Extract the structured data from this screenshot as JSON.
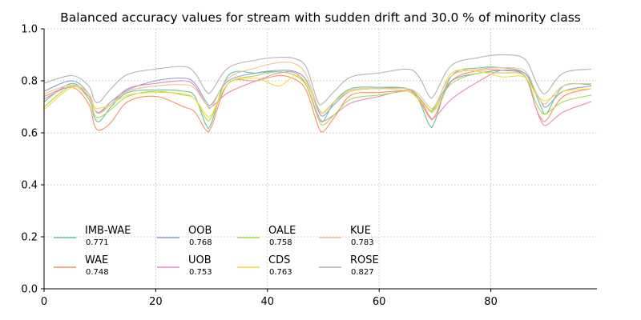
{
  "chart_data": {
    "type": "line",
    "title": "Balanced accuracy values for stream with sudden drift and 30.0 % of minority class",
    "xlabel": "",
    "ylabel": "",
    "xlim": [
      0,
      99
    ],
    "ylim": [
      0.0,
      1.0
    ],
    "xticks": [
      0,
      20,
      40,
      60,
      80
    ],
    "yticks": [
      0.0,
      0.2,
      0.4,
      0.6,
      0.8,
      1.0
    ],
    "xtick_labels": [
      "0",
      "20",
      "40",
      "60",
      "80"
    ],
    "ytick_labels": [
      "0.0",
      "0.2",
      "0.4",
      "0.6",
      "0.8",
      "1.0"
    ],
    "grid": true,
    "legend_position": "lower-left",
    "x": [
      0,
      5,
      8,
      9,
      10,
      12,
      15,
      20,
      25,
      27,
      29,
      30,
      33,
      38,
      42,
      45,
      47,
      49,
      50,
      52,
      55,
      60,
      65,
      67,
      69,
      70,
      73,
      78,
      82,
      86,
      88,
      89,
      90,
      93,
      98
    ],
    "series": [
      {
        "name": "IMB-WAE",
        "legend_value": "0.771",
        "color": "#66c2a5",
        "values": [
          0.72,
          0.79,
          0.73,
          0.66,
          0.645,
          0.7,
          0.755,
          0.765,
          0.76,
          0.74,
          0.63,
          0.64,
          0.82,
          0.83,
          0.835,
          0.82,
          0.78,
          0.67,
          0.645,
          0.72,
          0.77,
          0.775,
          0.77,
          0.73,
          0.63,
          0.645,
          0.82,
          0.85,
          0.85,
          0.83,
          0.75,
          0.7,
          0.675,
          0.78,
          0.785
        ]
      },
      {
        "name": "WAE",
        "legend_value": "0.748",
        "color": "#fc8d62",
        "values": [
          0.74,
          0.775,
          0.71,
          0.63,
          0.61,
          0.64,
          0.72,
          0.74,
          0.7,
          0.68,
          0.61,
          0.625,
          0.79,
          0.8,
          0.82,
          0.805,
          0.76,
          0.63,
          0.605,
          0.66,
          0.745,
          0.755,
          0.76,
          0.73,
          0.66,
          0.665,
          0.8,
          0.84,
          0.84,
          0.82,
          0.7,
          0.655,
          0.65,
          0.74,
          0.77
        ]
      },
      {
        "name": "OOB",
        "legend_value": "0.768",
        "color": "#8da0cb",
        "values": [
          0.76,
          0.8,
          0.75,
          0.69,
          0.68,
          0.72,
          0.765,
          0.8,
          0.81,
          0.79,
          0.72,
          0.71,
          0.8,
          0.83,
          0.84,
          0.835,
          0.8,
          0.69,
          0.665,
          0.71,
          0.76,
          0.77,
          0.77,
          0.74,
          0.69,
          0.7,
          0.8,
          0.83,
          0.84,
          0.83,
          0.76,
          0.72,
          0.7,
          0.76,
          0.78
        ]
      },
      {
        "name": "UOB",
        "legend_value": "0.753",
        "color": "#e78ac3",
        "values": [
          0.73,
          0.78,
          0.74,
          0.69,
          0.68,
          0.71,
          0.77,
          0.79,
          0.8,
          0.78,
          0.71,
          0.7,
          0.755,
          0.8,
          0.83,
          0.83,
          0.78,
          0.67,
          0.645,
          0.67,
          0.715,
          0.74,
          0.765,
          0.74,
          0.665,
          0.66,
          0.73,
          0.8,
          0.84,
          0.82,
          0.7,
          0.645,
          0.63,
          0.68,
          0.72
        ]
      },
      {
        "name": "OALE",
        "legend_value": "0.758",
        "color": "#a6d854",
        "values": [
          0.7,
          0.78,
          0.73,
          0.67,
          0.66,
          0.69,
          0.74,
          0.76,
          0.745,
          0.73,
          0.655,
          0.66,
          0.79,
          0.82,
          0.835,
          0.82,
          0.78,
          0.66,
          0.63,
          0.67,
          0.73,
          0.745,
          0.76,
          0.74,
          0.685,
          0.69,
          0.79,
          0.83,
          0.83,
          0.82,
          0.72,
          0.68,
          0.675,
          0.72,
          0.745
        ]
      },
      {
        "name": "CDS",
        "legend_value": "0.763",
        "color": "#ffd92f",
        "values": [
          0.69,
          0.775,
          0.75,
          0.7,
          0.695,
          0.71,
          0.745,
          0.755,
          0.75,
          0.73,
          0.67,
          0.67,
          0.79,
          0.81,
          0.78,
          0.82,
          0.79,
          0.7,
          0.68,
          0.72,
          0.76,
          0.77,
          0.76,
          0.73,
          0.69,
          0.695,
          0.83,
          0.835,
          0.815,
          0.815,
          0.75,
          0.73,
          0.725,
          0.76,
          0.77
        ]
      },
      {
        "name": "KUE",
        "legend_value": "0.783",
        "color": "#e5c494",
        "values": [
          0.75,
          0.785,
          0.75,
          0.69,
          0.675,
          0.71,
          0.76,
          0.78,
          0.785,
          0.77,
          0.71,
          0.7,
          0.81,
          0.85,
          0.87,
          0.865,
          0.82,
          0.7,
          0.675,
          0.72,
          0.765,
          0.77,
          0.77,
          0.75,
          0.7,
          0.705,
          0.82,
          0.845,
          0.85,
          0.84,
          0.76,
          0.72,
          0.715,
          0.78,
          0.79
        ]
      },
      {
        "name": "ROSE",
        "legend_value": "0.827",
        "color": "#b3b3b3",
        "values": [
          0.79,
          0.82,
          0.78,
          0.725,
          0.72,
          0.77,
          0.825,
          0.845,
          0.855,
          0.83,
          0.76,
          0.76,
          0.85,
          0.88,
          0.89,
          0.885,
          0.85,
          0.72,
          0.715,
          0.76,
          0.815,
          0.83,
          0.845,
          0.82,
          0.74,
          0.75,
          0.86,
          0.89,
          0.9,
          0.885,
          0.8,
          0.76,
          0.755,
          0.83,
          0.845
        ]
      }
    ]
  }
}
